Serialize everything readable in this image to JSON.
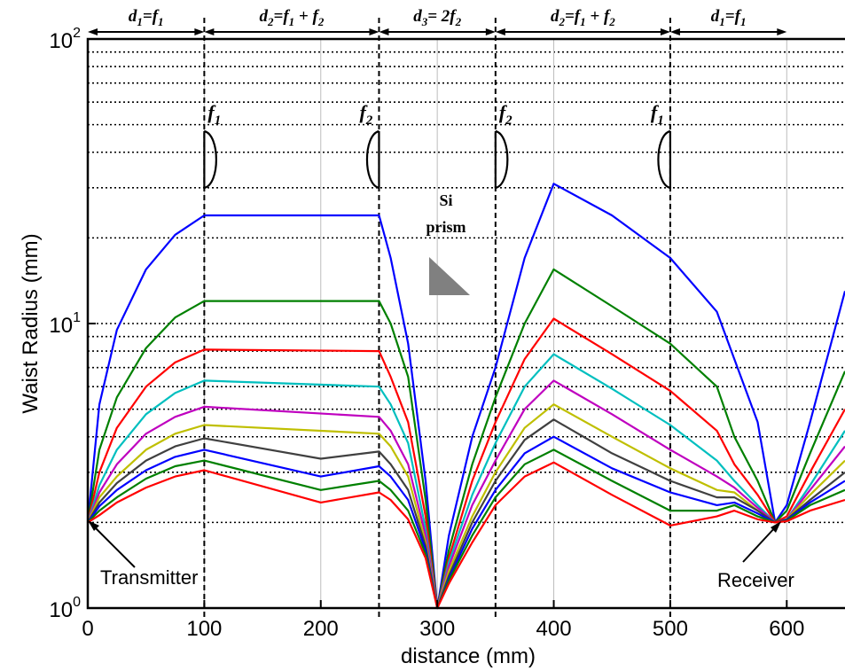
{
  "chart_data": {
    "type": "line",
    "title": "",
    "xlabel": "distance (mm)",
    "ylabel": "Waist Radius (mm)",
    "xlim": [
      0,
      650
    ],
    "ylim": [
      1,
      100
    ],
    "yscale": "log",
    "grid": "horizontal dotted on log decades, vertical at x ticks",
    "x_ticks": [
      "0",
      "100",
      "200",
      "300",
      "400",
      "500",
      "600"
    ],
    "y_ticks": [
      {
        "base": "10",
        "exp": "0"
      },
      {
        "base": "10",
        "exp": "1"
      },
      {
        "base": "10",
        "exp": "2"
      }
    ],
    "series": [
      {
        "color": "#0000ff",
        "points": [
          [
            0,
            2
          ],
          [
            10,
            5.2
          ],
          [
            25,
            9.5
          ],
          [
            50,
            15.5
          ],
          [
            75,
            20.5
          ],
          [
            100,
            24
          ],
          [
            250,
            24
          ],
          [
            260,
            17
          ],
          [
            275,
            8.5
          ],
          [
            290,
            2.8
          ],
          [
            300,
            1
          ],
          [
            310,
            1.8
          ],
          [
            330,
            4
          ],
          [
            350,
            7
          ],
          [
            375,
            17
          ],
          [
            400,
            31
          ],
          [
            450,
            24
          ],
          [
            500,
            17
          ],
          [
            540,
            11
          ],
          [
            555,
            7.5
          ],
          [
            575,
            4.5
          ],
          [
            590,
            2
          ],
          [
            600,
            2.3
          ],
          [
            620,
            4.5
          ],
          [
            650,
            13
          ]
        ]
      },
      {
        "color": "#008000",
        "points": [
          [
            0,
            2
          ],
          [
            10,
            3.6
          ],
          [
            25,
            5.5
          ],
          [
            50,
            8.2
          ],
          [
            75,
            10.5
          ],
          [
            100,
            12
          ],
          [
            250,
            12
          ],
          [
            260,
            10
          ],
          [
            275,
            6.5
          ],
          [
            290,
            2.4
          ],
          [
            300,
            1
          ],
          [
            310,
            1.6
          ],
          [
            330,
            3.2
          ],
          [
            350,
            5.5
          ],
          [
            375,
            10
          ],
          [
            400,
            15.5
          ],
          [
            450,
            11.5
          ],
          [
            500,
            8.5
          ],
          [
            540,
            6
          ],
          [
            555,
            4
          ],
          [
            575,
            2.8
          ],
          [
            590,
            2
          ],
          [
            600,
            2.2
          ],
          [
            620,
            3.5
          ],
          [
            650,
            6.8
          ]
        ]
      },
      {
        "color": "#ff0000",
        "points": [
          [
            0,
            2
          ],
          [
            10,
            3
          ],
          [
            25,
            4.3
          ],
          [
            50,
            6
          ],
          [
            75,
            7.3
          ],
          [
            100,
            8.1
          ],
          [
            250,
            8
          ],
          [
            260,
            6.5
          ],
          [
            275,
            4.5
          ],
          [
            290,
            2.1
          ],
          [
            300,
            1
          ],
          [
            310,
            1.5
          ],
          [
            330,
            2.8
          ],
          [
            350,
            4.5
          ],
          [
            375,
            7.5
          ],
          [
            400,
            10.4
          ],
          [
            450,
            7.8
          ],
          [
            500,
            5.8
          ],
          [
            540,
            4.2
          ],
          [
            555,
            3.2
          ],
          [
            575,
            2.5
          ],
          [
            590,
            2
          ],
          [
            600,
            2.1
          ],
          [
            620,
            3
          ],
          [
            650,
            5
          ]
        ]
      },
      {
        "color": "#00bfbf",
        "points": [
          [
            0,
            2
          ],
          [
            10,
            2.7
          ],
          [
            25,
            3.6
          ],
          [
            50,
            4.8
          ],
          [
            75,
            5.7
          ],
          [
            100,
            6.3
          ],
          [
            250,
            6
          ],
          [
            260,
            5.2
          ],
          [
            275,
            3.8
          ],
          [
            290,
            1.9
          ],
          [
            300,
            1
          ],
          [
            310,
            1.45
          ],
          [
            330,
            2.5
          ],
          [
            350,
            3.8
          ],
          [
            375,
            6
          ],
          [
            400,
            7.8
          ],
          [
            450,
            5.9
          ],
          [
            500,
            4.4
          ],
          [
            540,
            3.3
          ],
          [
            555,
            2.8
          ],
          [
            575,
            2.3
          ],
          [
            590,
            2
          ],
          [
            600,
            2.05
          ],
          [
            620,
            2.7
          ],
          [
            650,
            4.2
          ]
        ]
      },
      {
        "color": "#bf00bf",
        "points": [
          [
            0,
            2
          ],
          [
            10,
            2.55
          ],
          [
            25,
            3.2
          ],
          [
            50,
            4.1
          ],
          [
            75,
            4.7
          ],
          [
            100,
            5.1
          ],
          [
            250,
            4.7
          ],
          [
            260,
            4.2
          ],
          [
            275,
            3.2
          ],
          [
            290,
            1.8
          ],
          [
            300,
            1
          ],
          [
            310,
            1.4
          ],
          [
            330,
            2.3
          ],
          [
            350,
            3.3
          ],
          [
            375,
            5
          ],
          [
            400,
            6.3
          ],
          [
            450,
            4.8
          ],
          [
            500,
            3.6
          ],
          [
            540,
            2.9
          ],
          [
            555,
            2.65
          ],
          [
            575,
            2.25
          ],
          [
            590,
            2
          ],
          [
            600,
            2.05
          ],
          [
            620,
            2.6
          ],
          [
            650,
            3.7
          ]
        ]
      },
      {
        "color": "#bfbf00",
        "points": [
          [
            0,
            2
          ],
          [
            10,
            2.45
          ],
          [
            25,
            2.9
          ],
          [
            50,
            3.6
          ],
          [
            75,
            4.1
          ],
          [
            100,
            4.4
          ],
          [
            250,
            4.1
          ],
          [
            260,
            3.7
          ],
          [
            275,
            2.9
          ],
          [
            290,
            1.7
          ],
          [
            300,
            1
          ],
          [
            310,
            1.35
          ],
          [
            330,
            2.1
          ],
          [
            350,
            3
          ],
          [
            375,
            4.3
          ],
          [
            400,
            5.2
          ],
          [
            450,
            4
          ],
          [
            500,
            3.1
          ],
          [
            540,
            2.6
          ],
          [
            555,
            2.55
          ],
          [
            575,
            2.2
          ],
          [
            590,
            2
          ],
          [
            600,
            2.05
          ],
          [
            620,
            2.5
          ],
          [
            650,
            3.3
          ]
        ]
      },
      {
        "color": "#404040",
        "points": [
          [
            0,
            2
          ],
          [
            10,
            2.35
          ],
          [
            25,
            2.75
          ],
          [
            50,
            3.3
          ],
          [
            75,
            3.7
          ],
          [
            100,
            3.95
          ],
          [
            200,
            3.35
          ],
          [
            250,
            3.55
          ],
          [
            260,
            3.2
          ],
          [
            275,
            2.6
          ],
          [
            290,
            1.65
          ],
          [
            300,
            1
          ],
          [
            310,
            1.3
          ],
          [
            330,
            2
          ],
          [
            350,
            2.8
          ],
          [
            375,
            3.9
          ],
          [
            400,
            4.6
          ],
          [
            450,
            3.5
          ],
          [
            500,
            2.8
          ],
          [
            540,
            2.45
          ],
          [
            555,
            2.45
          ],
          [
            575,
            2.2
          ],
          [
            590,
            2
          ],
          [
            600,
            2.05
          ],
          [
            620,
            2.4
          ],
          [
            650,
            3
          ]
        ]
      },
      {
        "color": "#0000ff",
        "points": [
          [
            0,
            2
          ],
          [
            10,
            2.28
          ],
          [
            25,
            2.6
          ],
          [
            50,
            3.05
          ],
          [
            75,
            3.4
          ],
          [
            100,
            3.6
          ],
          [
            200,
            2.9
          ],
          [
            250,
            3.15
          ],
          [
            260,
            2.9
          ],
          [
            275,
            2.4
          ],
          [
            290,
            1.6
          ],
          [
            300,
            1
          ],
          [
            310,
            1.27
          ],
          [
            330,
            1.9
          ],
          [
            350,
            2.6
          ],
          [
            375,
            3.5
          ],
          [
            400,
            4
          ],
          [
            450,
            3.1
          ],
          [
            500,
            2.55
          ],
          [
            540,
            2.3
          ],
          [
            555,
            2.35
          ],
          [
            575,
            2.15
          ],
          [
            590,
            2
          ],
          [
            600,
            2.04
          ],
          [
            620,
            2.35
          ],
          [
            650,
            2.8
          ]
        ]
      },
      {
        "color": "#008000",
        "points": [
          [
            0,
            2
          ],
          [
            10,
            2.2
          ],
          [
            25,
            2.45
          ],
          [
            50,
            2.85
          ],
          [
            75,
            3.15
          ],
          [
            100,
            3.3
          ],
          [
            200,
            2.6
          ],
          [
            250,
            2.8
          ],
          [
            260,
            2.6
          ],
          [
            275,
            2.2
          ],
          [
            290,
            1.55
          ],
          [
            300,
            1
          ],
          [
            310,
            1.25
          ],
          [
            330,
            1.8
          ],
          [
            350,
            2.45
          ],
          [
            375,
            3.2
          ],
          [
            400,
            3.6
          ],
          [
            450,
            2.8
          ],
          [
            500,
            2.2
          ],
          [
            540,
            2.2
          ],
          [
            555,
            2.3
          ],
          [
            575,
            2.1
          ],
          [
            590,
            2
          ],
          [
            600,
            2.03
          ],
          [
            620,
            2.3
          ],
          [
            650,
            2.6
          ]
        ]
      },
      {
        "color": "#ff0000",
        "points": [
          [
            0,
            2
          ],
          [
            10,
            2.12
          ],
          [
            25,
            2.35
          ],
          [
            50,
            2.65
          ],
          [
            75,
            2.9
          ],
          [
            100,
            3.05
          ],
          [
            200,
            2.35
          ],
          [
            250,
            2.55
          ],
          [
            260,
            2.4
          ],
          [
            275,
            2.05
          ],
          [
            290,
            1.5
          ],
          [
            300,
            1
          ],
          [
            310,
            1.22
          ],
          [
            330,
            1.7
          ],
          [
            350,
            2.3
          ],
          [
            375,
            2.9
          ],
          [
            400,
            3.25
          ],
          [
            450,
            2.5
          ],
          [
            500,
            1.95
          ],
          [
            540,
            2.1
          ],
          [
            555,
            2.2
          ],
          [
            575,
            2.05
          ],
          [
            590,
            2
          ],
          [
            600,
            2.02
          ],
          [
            620,
            2.2
          ],
          [
            650,
            2.4
          ]
        ]
      }
    ],
    "annotations": {
      "segments": [
        {
          "from": 0,
          "to": 100,
          "d": "d",
          "sub": "1",
          "eq": "=",
          "f1": "f",
          "f1sub": "1",
          "plus": "",
          "f2": "",
          "f2sub": ""
        },
        {
          "from": 100,
          "to": 250,
          "d": "d",
          "sub": "2",
          "eq": "=",
          "f1": "f",
          "f1sub": "1",
          "plus": " + ",
          "f2": "f",
          "f2sub": "2"
        },
        {
          "from": 250,
          "to": 350,
          "d": "d",
          "sub": "3",
          "eq": "= 2",
          "f1": "f",
          "f1sub": "2",
          "plus": "",
          "f2": "",
          "f2sub": ""
        },
        {
          "from": 350,
          "to": 500,
          "d": "d",
          "sub": "2",
          "eq": "=",
          "f1": "f",
          "f1sub": "1",
          "plus": " + ",
          "f2": "f",
          "f2sub": "2"
        },
        {
          "from": 500,
          "to": 600,
          "d": "d",
          "sub": "1",
          "eq": "=",
          "f1": "f",
          "f1sub": "1",
          "plus": "",
          "f2": "",
          "f2sub": ""
        }
      ],
      "lenses": [
        {
          "x": 100,
          "label": "f",
          "sub": "1",
          "orient": "right"
        },
        {
          "x": 250,
          "label": "f",
          "sub": "2",
          "orient": "left"
        },
        {
          "x": 350,
          "label": "f",
          "sub": "2",
          "orient": "right"
        },
        {
          "x": 500,
          "label": "f",
          "sub": "1",
          "orient": "left"
        }
      ],
      "prism_label_1": "Si",
      "prism_label_2": "prism",
      "transmitter": "Transmitter",
      "receiver": "Receiver"
    }
  }
}
